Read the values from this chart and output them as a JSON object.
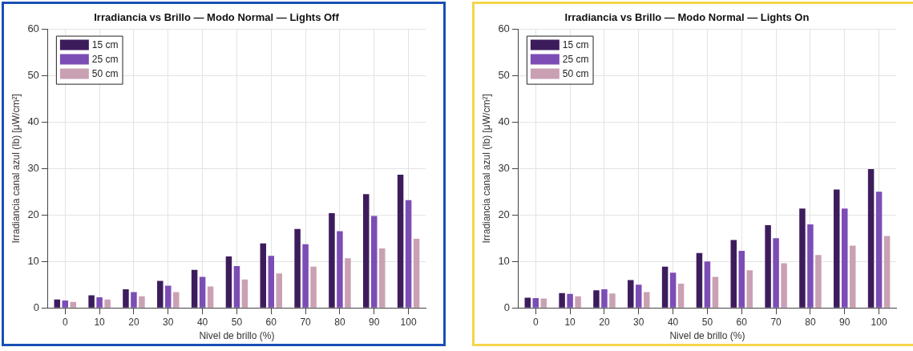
{
  "chart_data": [
    {
      "type": "bar",
      "title": "Irradiancia vs Brillo — Modo Normal — Lights Off",
      "xlabel": "Nivel de brillo (%)",
      "ylabel": "Irradiancia canal azul (Ib) [μW/cm²]",
      "categories": [
        "0",
        "10",
        "20",
        "30",
        "40",
        "50",
        "60",
        "70",
        "80",
        "90",
        "100"
      ],
      "series": [
        {
          "name": "15 cm",
          "color": "#3d1c5c",
          "values": [
            1.8,
            2.7,
            4.0,
            5.8,
            8.2,
            11.1,
            13.9,
            17.0,
            20.4,
            24.5,
            28.7
          ]
        },
        {
          "name": "25 cm",
          "color": "#7c4db5",
          "values": [
            1.6,
            2.3,
            3.4,
            4.8,
            6.7,
            9.0,
            11.2,
            13.7,
            16.5,
            19.8,
            23.2
          ]
        },
        {
          "name": "50 cm",
          "color": "#c9a1b3",
          "values": [
            1.3,
            1.8,
            2.5,
            3.4,
            4.6,
            6.1,
            7.4,
            8.9,
            10.7,
            12.8,
            14.9
          ]
        }
      ],
      "ylim": [
        0,
        60
      ],
      "yticks": [
        0,
        10,
        20,
        30,
        40,
        50,
        60
      ],
      "grid": true,
      "legend": "top left"
    },
    {
      "type": "bar",
      "title": "Irradiancia vs Brillo — Modo Normal — Lights On",
      "xlabel": "Nivel de brillo (%)",
      "ylabel": "Irradiancia canal azul (Ib) [μW/cm²]",
      "categories": [
        "0",
        "10",
        "20",
        "30",
        "40",
        "50",
        "60",
        "70",
        "80",
        "90",
        "100"
      ],
      "series": [
        {
          "name": "15 cm",
          "color": "#3d1c5c",
          "values": [
            2.2,
            3.2,
            3.8,
            6.0,
            8.9,
            11.8,
            14.6,
            17.8,
            21.4,
            25.5,
            29.9
          ]
        },
        {
          "name": "25 cm",
          "color": "#7c4db5",
          "values": [
            2.1,
            3.0,
            4.0,
            5.0,
            7.6,
            10.0,
            12.3,
            15.0,
            18.0,
            21.4,
            25.0
          ]
        },
        {
          "name": "50 cm",
          "color": "#c9a1b3",
          "values": [
            2.0,
            2.5,
            3.1,
            3.4,
            5.2,
            6.7,
            8.1,
            9.6,
            11.4,
            13.4,
            15.5
          ]
        }
      ],
      "ylim": [
        0,
        60
      ],
      "yticks": [
        0,
        10,
        20,
        30,
        40,
        50,
        60
      ],
      "grid": true,
      "legend": "top left"
    }
  ]
}
